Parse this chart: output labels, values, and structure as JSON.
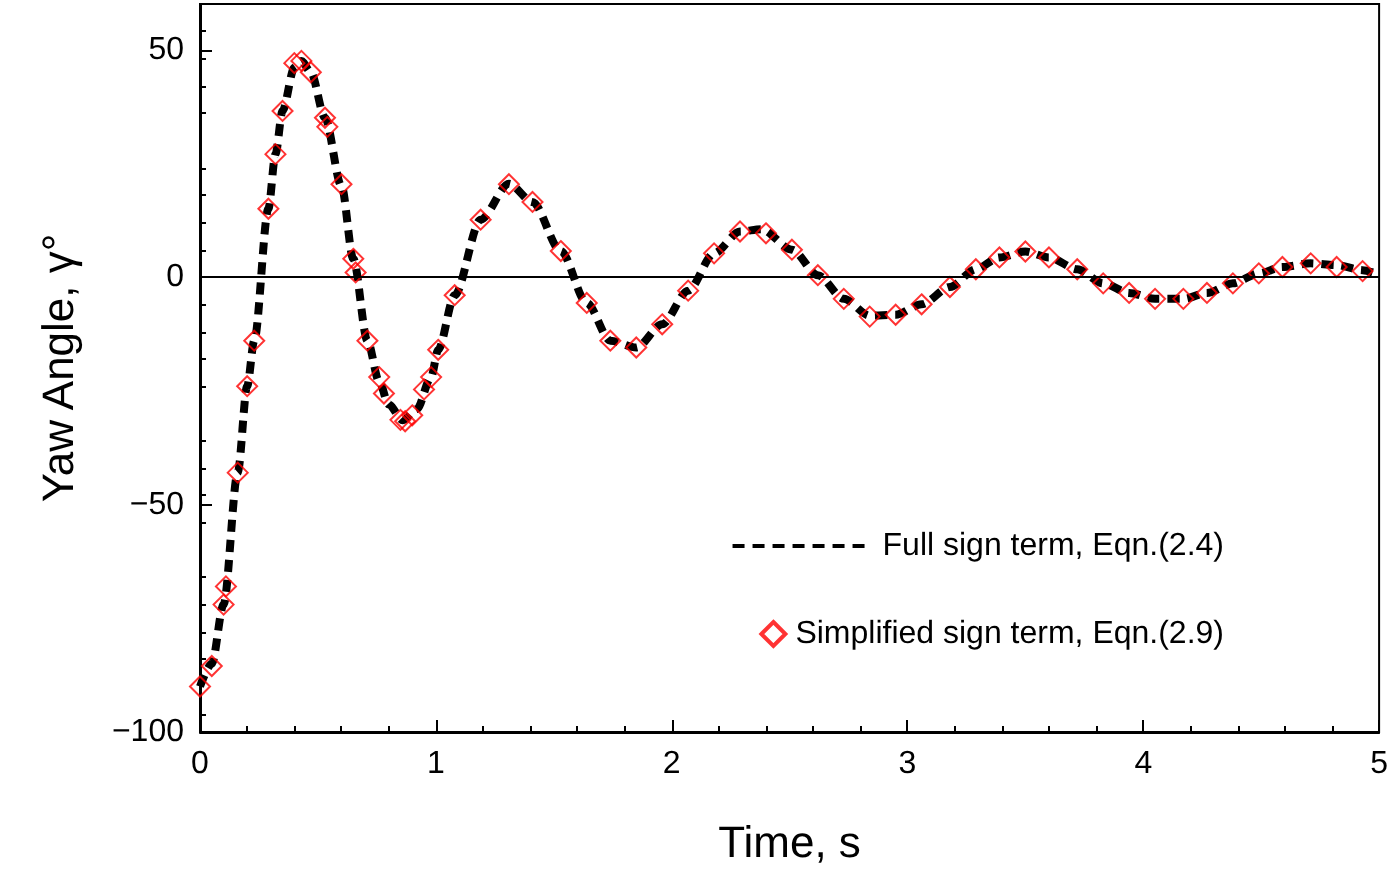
{
  "chart_data": {
    "type": "line",
    "xlabel": "Time, s",
    "ylabel": "Yaw Angle, γ°",
    "xlim": [
      0,
      5
    ],
    "xticks": [
      0,
      1,
      2,
      3,
      4,
      5
    ],
    "ylim": [
      -100,
      60
    ],
    "yticks": [
      -100,
      -50,
      0,
      50
    ],
    "grid": false,
    "legend": "bottom right",
    "ref_lines": [
      {
        "axis": "y",
        "value": 0,
        "color": "#000000"
      }
    ],
    "series": [
      {
        "name": "Full sign term, Eqn.(2.4)",
        "color": "#000000",
        "line_style": "dashed",
        "marker": "none",
        "x": [
          0,
          0.05,
          0.1,
          0.16,
          0.2,
          0.23,
          0.29,
          0.32,
          0.35,
          0.4,
          0.43,
          0.47,
          0.53,
          0.6,
          0.65,
          0.71,
          0.76,
          0.8,
          0.86,
          0.92,
          0.98,
          1.01,
          1.08,
          1.19,
          1.31,
          1.41,
          1.53,
          1.64,
          1.74,
          1.85,
          1.96,
          2.07,
          2.18,
          2.29,
          2.38,
          2.51,
          2.62,
          2.73,
          2.84,
          2.95,
          3.06,
          3.18,
          3.29,
          3.39,
          3.5,
          3.6,
          3.72,
          3.83,
          3.94,
          4.05,
          4.17,
          4.27,
          4.38,
          4.49,
          4.59,
          4.71,
          4.82,
          4.93,
          5
        ],
        "values": [
          -90,
          -85,
          -72,
          -43,
          -24,
          -14,
          15,
          27,
          36.5,
          46,
          47.5,
          45,
          35,
          20,
          4,
          -14,
          -23,
          -28,
          -31.5,
          -29,
          -22,
          -16,
          -4,
          12.6,
          20.5,
          16.5,
          5.7,
          -5.7,
          -14,
          -15.5,
          -10.4,
          -3,
          5.2,
          10,
          10.5,
          6,
          0.4,
          -4.8,
          -8.5,
          -8.3,
          -6,
          -2.2,
          1.7,
          4.3,
          5.6,
          4.3,
          1.7,
          -1.4,
          -3.5,
          -4.8,
          -4.8,
          -3.5,
          -1.4,
          0.8,
          2.2,
          3,
          2.6,
          1.5,
          0.5
        ]
      },
      {
        "name": "Simplified sign term, Eqn.(2.9)",
        "type": "scatter",
        "color": "#ff0000",
        "marker": "diamond",
        "x": [
          0,
          0.05,
          0.1,
          0.11,
          0.16,
          0.2,
          0.23,
          0.29,
          0.32,
          0.35,
          0.4,
          0.43,
          0.47,
          0.53,
          0.54,
          0.6,
          0.65,
          0.66,
          0.71,
          0.76,
          0.78,
          0.85,
          0.87,
          0.9,
          0.95,
          0.98,
          1.01,
          1.08,
          1.19,
          1.31,
          1.41,
          1.53,
          1.64,
          1.74,
          1.85,
          1.96,
          2.07,
          2.18,
          2.29,
          2.4,
          2.51,
          2.62,
          2.73,
          2.84,
          2.95,
          3.06,
          3.18,
          3.29,
          3.39,
          3.5,
          3.6,
          3.72,
          3.83,
          3.94,
          4.05,
          4.17,
          4.27,
          4.38,
          4.49,
          4.59,
          4.71,
          4.82,
          4.93
        ],
        "values": [
          -90,
          -85.5,
          -72,
          -68,
          -43,
          -24,
          -14,
          15,
          27,
          36.5,
          47,
          47.5,
          45,
          35,
          33,
          20.4,
          4,
          1,
          -14,
          -22,
          -25.6,
          -31.4,
          -31.7,
          -30.4,
          -24.7,
          -22,
          -16,
          -4,
          12.6,
          20.4,
          16.5,
          5.7,
          -5.7,
          -14,
          -15.5,
          -10.4,
          -3,
          5.2,
          10,
          9.6,
          6,
          0.4,
          -4.8,
          -8.7,
          -8.3,
          -6,
          -2.2,
          1.7,
          4.3,
          5.6,
          4.3,
          1.7,
          -1.4,
          -3.5,
          -4.8,
          -4.8,
          -3.5,
          -1.4,
          0.8,
          2.2,
          3,
          2.2,
          1.3
        ]
      }
    ]
  }
}
